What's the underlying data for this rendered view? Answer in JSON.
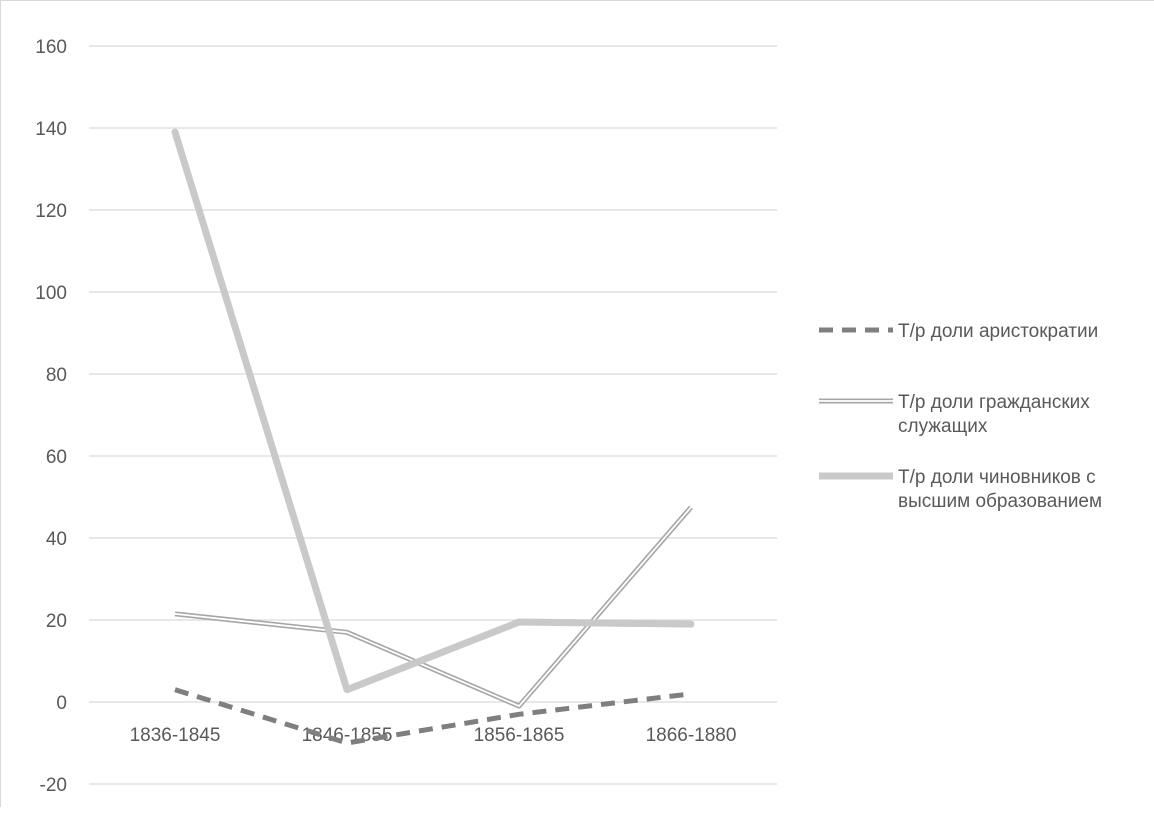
{
  "chart_data": {
    "type": "line",
    "title": "",
    "xlabel": "",
    "ylabel": "",
    "categories": [
      "1836-1845",
      "1846-1855",
      "1856-1865",
      "1866-1880"
    ],
    "ylim": [
      -20,
      160
    ],
    "yticks": [
      -20,
      0,
      20,
      40,
      60,
      80,
      100,
      120,
      140,
      160
    ],
    "grid": true,
    "legend_position": "right",
    "series": [
      {
        "name": "Т/р доли аристократии",
        "name_lines": [
          "Т/р доли аристократии"
        ],
        "values": [
          3,
          -10,
          -3,
          2
        ],
        "color": "#7f7f7f",
        "style": "dashed"
      },
      {
        "name": "Т/р доли гражданских служащих",
        "name_lines": [
          "Т/р доли гражданских",
          "служащих"
        ],
        "values": [
          21.5,
          17,
          -1,
          47.5
        ],
        "color": "#a6a6a6",
        "style": "double"
      },
      {
        "name": "Т/р доли чиновников с высшим образованием",
        "name_lines": [
          "Т/р доли чиновников с",
          "высшим образованием"
        ],
        "values": [
          139,
          3,
          19.5,
          19
        ],
        "color": "#c9c9c9",
        "style": "solid-thick"
      }
    ]
  }
}
